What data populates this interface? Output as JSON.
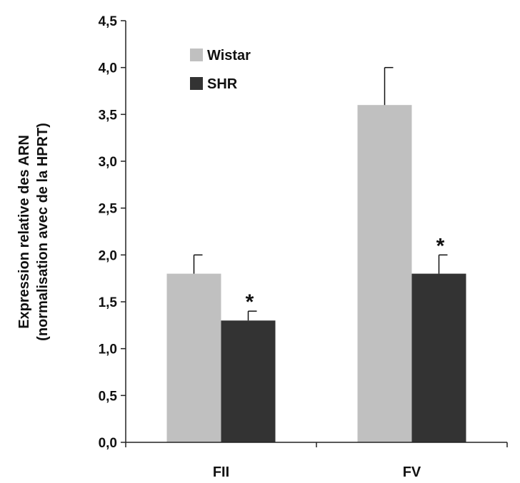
{
  "chart_data": {
    "type": "bar",
    "categories": [
      "FII",
      "FV"
    ],
    "series": [
      {
        "name": "Wistar",
        "values": [
          1.8,
          3.6
        ],
        "errors": [
          0.2,
          0.4
        ],
        "color": "#c0c0c0",
        "significance": [
          "",
          ""
        ]
      },
      {
        "name": "SHR",
        "values": [
          1.3,
          1.8
        ],
        "errors": [
          0.1,
          0.2
        ],
        "color": "#333333",
        "significance": [
          "*",
          "*"
        ]
      }
    ],
    "ylabel_lines": [
      "Expression relative des ARN",
      "(normalisation avec de la HPRT)"
    ],
    "ylim": [
      0,
      4.5
    ],
    "yticks": [
      "0,0",
      "0,5",
      "1,0",
      "1,5",
      "2,0",
      "2,5",
      "3,0",
      "3,5",
      "4,0",
      "4,5"
    ],
    "ytick_step": 0.5,
    "legend_position": "top-left",
    "grid": false
  }
}
